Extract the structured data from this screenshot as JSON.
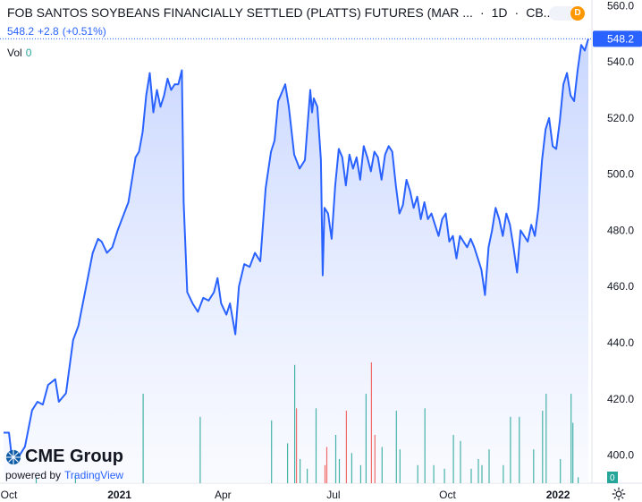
{
  "header": {
    "title": "FOB SANTOS SOYBEANS FINANCIALLY SETTLED (PLATTS) FUTURES (MAR ...",
    "interval": "1D",
    "exchange": "CB...",
    "price": "548.2",
    "change": "+2.8",
    "change_pct": "(+0.51%)",
    "vol_label": "Vol",
    "vol_value": "0",
    "toggle_badge": "D"
  },
  "branding": {
    "brand": "CME Group",
    "powered_by": "powered by",
    "platform": "TradingView"
  },
  "colors": {
    "line": "#2962ff",
    "volume_up": "#26a69a",
    "volume_down": "#ef5350",
    "area_top": "#c3d2ff",
    "area_bottom": "#f6f8ff",
    "last_price_badge": "#2962ff"
  },
  "chart_data": {
    "type": "area",
    "y_axis": {
      "ticks": [
        400,
        420,
        440,
        460,
        480,
        500,
        520,
        540,
        560
      ],
      "range": [
        390,
        562
      ]
    },
    "x_axis": {
      "ticks": [
        {
          "label": "Oct",
          "index": 3
        },
        {
          "label": "2021",
          "index": 65
        },
        {
          "label": "Apr",
          "index": 123
        },
        {
          "label": "Jul",
          "index": 185
        },
        {
          "label": "Oct",
          "index": 249
        },
        {
          "label": "2022",
          "index": 311
        }
      ],
      "count": 330
    },
    "last_price": 548.2,
    "last_price_label": "548.2",
    "volume_axis_label": "0",
    "series_keypoints": [
      [
        0,
        408
      ],
      [
        3,
        408
      ],
      [
        5,
        397
      ],
      [
        8,
        399
      ],
      [
        12,
        403
      ],
      [
        16,
        416
      ],
      [
        19,
        419
      ],
      [
        22,
        418
      ],
      [
        25,
        425
      ],
      [
        29,
        427
      ],
      [
        31,
        419
      ],
      [
        35,
        422
      ],
      [
        39,
        441
      ],
      [
        42,
        446
      ],
      [
        46,
        459
      ],
      [
        50,
        472
      ],
      [
        53,
        477
      ],
      [
        55,
        476
      ],
      [
        58,
        472
      ],
      [
        61,
        474
      ],
      [
        64,
        480
      ],
      [
        67,
        485
      ],
      [
        70,
        490
      ],
      [
        72,
        498
      ],
      [
        74,
        506
      ],
      [
        76,
        508
      ],
      [
        78,
        515
      ],
      [
        80,
        528
      ],
      [
        82,
        536
      ],
      [
        84,
        522
      ],
      [
        86,
        530
      ],
      [
        88,
        524
      ],
      [
        90,
        528
      ],
      [
        92,
        534
      ],
      [
        94,
        530
      ],
      [
        96,
        532
      ],
      [
        98,
        532
      ],
      [
        100,
        537
      ],
      [
        101,
        490
      ],
      [
        103,
        458
      ],
      [
        106,
        454
      ],
      [
        109,
        451
      ],
      [
        112,
        456
      ],
      [
        115,
        455
      ],
      [
        118,
        458
      ],
      [
        120,
        463
      ],
      [
        122,
        454
      ],
      [
        125,
        450
      ],
      [
        127,
        454
      ],
      [
        130,
        443
      ],
      [
        132,
        460
      ],
      [
        135,
        468
      ],
      [
        138,
        467
      ],
      [
        141,
        472
      ],
      [
        144,
        469
      ],
      [
        147,
        495
      ],
      [
        150,
        508
      ],
      [
        152,
        512
      ],
      [
        154,
        526
      ],
      [
        156,
        529
      ],
      [
        158,
        532
      ],
      [
        160,
        524
      ],
      [
        163,
        507
      ],
      [
        166,
        502
      ],
      [
        169,
        505
      ],
      [
        172,
        530
      ],
      [
        173,
        522
      ],
      [
        174,
        527
      ],
      [
        176,
        524
      ],
      [
        178,
        505
      ],
      [
        179,
        464
      ],
      [
        180,
        488
      ],
      [
        182,
        486
      ],
      [
        184,
        477
      ],
      [
        186,
        496
      ],
      [
        188,
        509
      ],
      [
        190,
        506
      ],
      [
        192,
        496
      ],
      [
        194,
        507
      ],
      [
        196,
        502
      ],
      [
        198,
        506
      ],
      [
        200,
        498
      ],
      [
        202,
        510
      ],
      [
        204,
        506
      ],
      [
        206,
        501
      ],
      [
        208,
        508
      ],
      [
        210,
        506
      ],
      [
        212,
        498
      ],
      [
        214,
        507
      ],
      [
        216,
        510
      ],
      [
        218,
        508
      ],
      [
        220,
        496
      ],
      [
        222,
        486
      ],
      [
        224,
        489
      ],
      [
        226,
        498
      ],
      [
        228,
        494
      ],
      [
        230,
        488
      ],
      [
        232,
        492
      ],
      [
        234,
        484
      ],
      [
        236,
        490
      ],
      [
        238,
        484
      ],
      [
        240,
        486
      ],
      [
        242,
        482
      ],
      [
        244,
        478
      ],
      [
        246,
        484
      ],
      [
        248,
        486
      ],
      [
        250,
        476
      ],
      [
        252,
        478
      ],
      [
        254,
        470
      ],
      [
        256,
        478
      ],
      [
        258,
        476
      ],
      [
        260,
        474
      ],
      [
        262,
        477
      ],
      [
        264,
        474
      ],
      [
        266,
        470
      ],
      [
        268,
        466
      ],
      [
        270,
        457
      ],
      [
        272,
        474
      ],
      [
        274,
        480
      ],
      [
        276,
        488
      ],
      [
        278,
        484
      ],
      [
        280,
        478
      ],
      [
        282,
        486
      ],
      [
        284,
        482
      ],
      [
        286,
        474
      ],
      [
        288,
        465
      ],
      [
        290,
        480
      ],
      [
        292,
        478
      ],
      [
        294,
        476
      ],
      [
        296,
        482
      ],
      [
        298,
        478
      ],
      [
        300,
        488
      ],
      [
        302,
        505
      ],
      [
        304,
        516
      ],
      [
        306,
        520
      ],
      [
        308,
        510
      ],
      [
        310,
        509
      ],
      [
        312,
        519
      ],
      [
        314,
        532
      ],
      [
        316,
        536
      ],
      [
        318,
        528
      ],
      [
        320,
        526
      ],
      [
        322,
        537
      ],
      [
        324,
        546
      ],
      [
        326,
        544
      ],
      [
        328,
        548.2
      ]
    ],
    "volume_bars": [
      {
        "i": 18,
        "h": 0.05,
        "up": true
      },
      {
        "i": 40,
        "h": 0.07,
        "up": true
      },
      {
        "i": 78,
        "h": 0.74,
        "up": true
      },
      {
        "i": 110,
        "h": 0.55,
        "up": true
      },
      {
        "i": 150,
        "h": 0.52,
        "up": true
      },
      {
        "i": 159,
        "h": 0.33,
        "up": true
      },
      {
        "i": 163,
        "h": 0.98,
        "up": true
      },
      {
        "i": 164,
        "h": 0.62,
        "up": false
      },
      {
        "i": 166,
        "h": 0.2,
        "up": true
      },
      {
        "i": 170,
        "h": 0.12,
        "up": true
      },
      {
        "i": 175,
        "h": 0.62,
        "up": true
      },
      {
        "i": 180,
        "h": 0.15,
        "up": false
      },
      {
        "i": 181,
        "h": 0.3,
        "up": false
      },
      {
        "i": 186,
        "h": 0.4,
        "up": true
      },
      {
        "i": 188,
        "h": 0.2,
        "up": true
      },
      {
        "i": 192,
        "h": 0.6,
        "up": false
      },
      {
        "i": 195,
        "h": 0.25,
        "up": true
      },
      {
        "i": 200,
        "h": 0.15,
        "up": true
      },
      {
        "i": 203,
        "h": 0.74,
        "up": true
      },
      {
        "i": 206,
        "h": 1.0,
        "up": false
      },
      {
        "i": 208,
        "h": 0.4,
        "up": false
      },
      {
        "i": 212,
        "h": 0.3,
        "up": true
      },
      {
        "i": 220,
        "h": 0.6,
        "up": true
      },
      {
        "i": 222,
        "h": 0.28,
        "up": true
      },
      {
        "i": 232,
        "h": 0.15,
        "up": true
      },
      {
        "i": 236,
        "h": 0.62,
        "up": true
      },
      {
        "i": 241,
        "h": 0.15,
        "up": true
      },
      {
        "i": 247,
        "h": 0.12,
        "up": true
      },
      {
        "i": 252,
        "h": 0.4,
        "up": true
      },
      {
        "i": 256,
        "h": 0.35,
        "up": true
      },
      {
        "i": 262,
        "h": 0.12,
        "up": true
      },
      {
        "i": 266,
        "h": 0.2,
        "up": true
      },
      {
        "i": 268,
        "h": 0.15,
        "up": true
      },
      {
        "i": 272,
        "h": 0.28,
        "up": true
      },
      {
        "i": 280,
        "h": 0.15,
        "up": true
      },
      {
        "i": 284,
        "h": 0.55,
        "up": true
      },
      {
        "i": 289,
        "h": 0.55,
        "up": true
      },
      {
        "i": 297,
        "h": 0.28,
        "up": true
      },
      {
        "i": 302,
        "h": 0.6,
        "up": true
      },
      {
        "i": 304,
        "h": 0.74,
        "up": true
      },
      {
        "i": 312,
        "h": 0.2,
        "up": true
      },
      {
        "i": 318,
        "h": 0.74,
        "up": true
      },
      {
        "i": 319,
        "h": 0.5,
        "up": true
      },
      {
        "i": 322,
        "h": 0.05,
        "up": true
      }
    ]
  }
}
